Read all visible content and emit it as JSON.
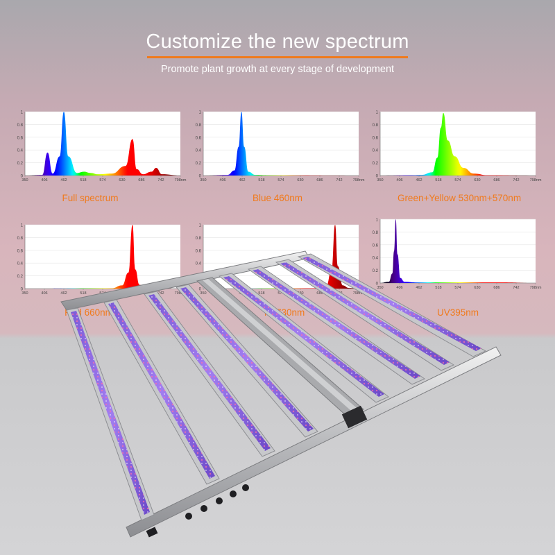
{
  "header": {
    "title": "Customize the new spectrum",
    "subtitle": "Promote plant growth at every stage of development"
  },
  "colors": {
    "accent": "#f07a1c",
    "title": "#ffffff"
  },
  "chart_data": [
    {
      "type": "area",
      "label": "Full spectrum",
      "x_ticks": [
        "350",
        "406",
        "462",
        "518",
        "574",
        "630",
        "686",
        "742",
        "798nm"
      ],
      "y_ticks": [
        "0",
        "0.2",
        "0.4",
        "0.6",
        "0.8",
        "1"
      ],
      "xlim": [
        350,
        798
      ],
      "ylim": [
        0,
        1
      ],
      "series": [
        {
          "x": [
            350,
            400,
            415,
            430,
            450,
            462,
            475,
            500,
            520,
            540,
            560,
            600,
            640,
            660,
            672,
            690,
            715,
            728,
            745,
            798
          ],
          "y": [
            0,
            0.01,
            0.36,
            0.03,
            0.3,
            1.0,
            0.3,
            0.04,
            0.06,
            0.04,
            0.02,
            0.03,
            0.15,
            0.57,
            0.1,
            0.02,
            0.06,
            0.12,
            0.02,
            0
          ]
        }
      ]
    },
    {
      "type": "area",
      "label": "Blue 460nm",
      "x_ticks": [
        "350",
        "406",
        "462",
        "518",
        "574",
        "630",
        "686",
        "742",
        "798nm"
      ],
      "y_ticks": [
        "0",
        "0.2",
        "0.4",
        "0.6",
        "0.8",
        "1"
      ],
      "xlim": [
        350,
        798
      ],
      "ylim": [
        0,
        1
      ],
      "series": [
        {
          "x": [
            350,
            420,
            440,
            452,
            460,
            468,
            480,
            500,
            540,
            798
          ],
          "y": [
            0,
            0.01,
            0.08,
            0.45,
            1.0,
            0.45,
            0.06,
            0.01,
            0.005,
            0
          ]
        }
      ]
    },
    {
      "type": "area",
      "label": "Green+Yellow 530nm+570nm",
      "x_ticks": [
        "350",
        "406",
        "462",
        "518",
        "574",
        "630",
        "686",
        "742",
        "798nm"
      ],
      "y_ticks": [
        "0",
        "0.2",
        "0.4",
        "0.6",
        "0.8",
        "1"
      ],
      "xlim": [
        350,
        798
      ],
      "ylim": [
        0,
        1
      ],
      "series": [
        {
          "x": [
            350,
            440,
            470,
            500,
            515,
            525,
            532,
            545,
            565,
            590,
            620,
            660,
            798
          ],
          "y": [
            0,
            0.005,
            0.01,
            0.05,
            0.28,
            0.75,
            0.98,
            0.55,
            0.3,
            0.12,
            0.03,
            0.005,
            0
          ]
        }
      ]
    },
    {
      "type": "area",
      "label": "Red 660nm",
      "x_ticks": [
        "350",
        "406",
        "462",
        "518",
        "574",
        "630",
        "686",
        "742",
        "798nm"
      ],
      "y_ticks": [
        "0",
        "0.2",
        "0.4",
        "0.6",
        "0.8",
        "1"
      ],
      "xlim": [
        350,
        798
      ],
      "ylim": [
        0,
        1
      ],
      "series": [
        {
          "x": [
            350,
            600,
            630,
            648,
            660,
            668,
            680,
            700,
            798
          ],
          "y": [
            0,
            0.005,
            0.05,
            0.25,
            1.0,
            0.3,
            0.06,
            0.01,
            0
          ]
        }
      ]
    },
    {
      "type": "area",
      "label": "IR 730nm",
      "x_ticks": [
        "350",
        "406",
        "462",
        "518",
        "574",
        "630",
        "686",
        "742",
        "798nm"
      ],
      "y_ticks": [
        "0",
        "0.2",
        "0.4",
        "0.6",
        "0.8",
        "1"
      ],
      "xlim": [
        350,
        798
      ],
      "ylim": [
        0,
        1
      ],
      "series": [
        {
          "x": [
            350,
            680,
            705,
            720,
            730,
            738,
            752,
            770,
            798
          ],
          "y": [
            0,
            0.005,
            0.05,
            0.3,
            1.0,
            0.35,
            0.05,
            0.01,
            0
          ]
        }
      ]
    },
    {
      "type": "area",
      "label": "UV395nm",
      "x_ticks": [
        "350",
        "406",
        "462",
        "518",
        "574",
        "630",
        "686",
        "742",
        "798nm"
      ],
      "y_ticks": [
        "0",
        "0.2",
        "0.4",
        "0.6",
        "0.8",
        "1"
      ],
      "xlim": [
        350,
        798
      ],
      "ylim": [
        0,
        1
      ],
      "series": [
        {
          "x": [
            350,
            375,
            385,
            390,
            395,
            400,
            408,
            420,
            450,
            500,
            600,
            700,
            798
          ],
          "y": [
            0,
            0.02,
            0.15,
            0.5,
            1.0,
            0.45,
            0.08,
            0.02,
            0.01,
            0.01,
            0.01,
            0.01,
            0
          ]
        }
      ]
    }
  ]
}
